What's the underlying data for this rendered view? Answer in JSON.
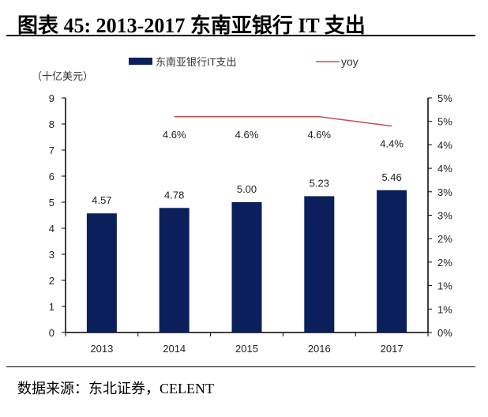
{
  "title": "图表  45:  2013-2017 东南亚银行 IT 支出",
  "source": "数据来源：东北证券，CELENT",
  "chart_data": {
    "type": "bar+line",
    "title": "图表  45:  2013-2017 东南亚银行 IT 支出",
    "unit_label": "（十亿美元）",
    "categories": [
      "2013",
      "2014",
      "2015",
      "2016",
      "2017"
    ],
    "series": [
      {
        "name": "东南亚银行IT支出",
        "type": "bar",
        "axis": "left",
        "color": "#0b1f5c",
        "values": [
          4.57,
          4.78,
          5.0,
          5.23,
          5.46
        ],
        "labels": [
          "4.57",
          "4.78",
          "5.00",
          "5.23",
          "5.46"
        ]
      },
      {
        "name": "yoy",
        "type": "line",
        "axis": "right",
        "color": "#c0504d",
        "values": [
          null,
          4.6,
          4.6,
          4.6,
          4.4
        ],
        "labels": [
          "",
          "4.6%",
          "4.6%",
          "4.6%",
          "4.4%"
        ]
      }
    ],
    "left_axis": {
      "ylim": [
        0,
        9
      ],
      "ticks": [
        "0",
        "1",
        "2",
        "3",
        "4",
        "5",
        "6",
        "7",
        "8",
        "9"
      ]
    },
    "right_axis": {
      "ylim": [
        0,
        5
      ],
      "ticks": [
        "0%",
        "1%",
        "1%",
        "2%",
        "2%",
        "3%",
        "3%",
        "4%",
        "4%",
        "5%",
        "5%"
      ]
    },
    "legend": "top",
    "grid": false
  }
}
